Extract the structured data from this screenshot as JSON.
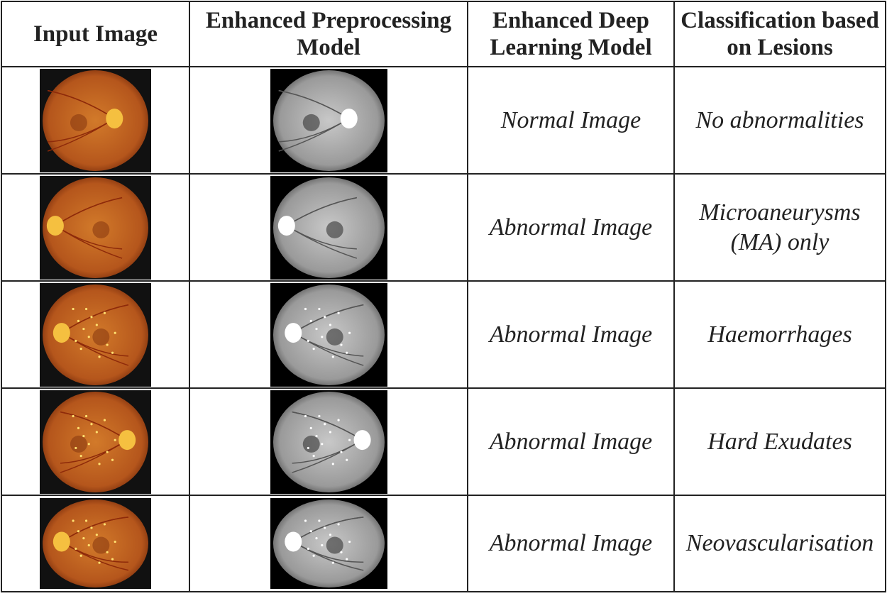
{
  "table": {
    "header": [
      "Input Image",
      "Enhanced Preprocessing Model",
      "Enhanced Deep Learning Model",
      "Classification based on Lesions"
    ],
    "rows": [
      [
        "Normal Image",
        "No abnormalities"
      ],
      [
        "Abnormal Image",
        "Microaneurysms (MA) only"
      ],
      [
        "Abnormal Image",
        "Haemorrhages"
      ],
      [
        "Abnormal Image",
        "Hard Exudates"
      ],
      [
        "Abnormal Image",
        "Neovascularisation"
      ]
    ]
  }
}
